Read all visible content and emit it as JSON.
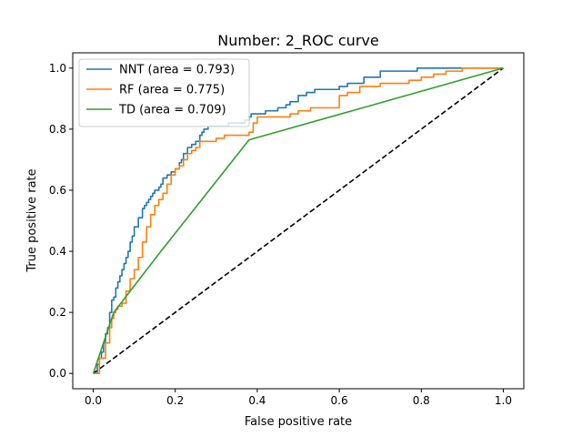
{
  "chart_data": {
    "type": "line",
    "title": "Number: 2_ROC curve",
    "xlabel": "False positive rate",
    "ylabel": "True positive rate",
    "xlim": [
      -0.05,
      1.05
    ],
    "ylim": [
      -0.05,
      1.05
    ],
    "xticks": [
      "0.0",
      "0.2",
      "0.4",
      "0.6",
      "0.8",
      "1.0"
    ],
    "yticks": [
      "0.0",
      "0.2",
      "0.4",
      "0.6",
      "0.8",
      "1.0"
    ],
    "grid": false,
    "legend_position": "upper-left",
    "series": [
      {
        "name": "NNT (area = 0.793)",
        "color": "#1f77b4",
        "step": true,
        "x": [
          0,
          0.01,
          0.015,
          0.02,
          0.025,
          0.03,
          0.035,
          0.04,
          0.045,
          0.05,
          0.055,
          0.06,
          0.065,
          0.07,
          0.075,
          0.08,
          0.085,
          0.09,
          0.095,
          0.1,
          0.11,
          0.12,
          0.125,
          0.13,
          0.135,
          0.14,
          0.145,
          0.15,
          0.16,
          0.165,
          0.17,
          0.18,
          0.19,
          0.2,
          0.21,
          0.215,
          0.22,
          0.23,
          0.24,
          0.25,
          0.26,
          0.265,
          0.27,
          0.28,
          0.29,
          0.3,
          0.31,
          0.32,
          0.33,
          0.36,
          0.37,
          0.38,
          0.385,
          0.39,
          0.42,
          0.45,
          0.47,
          0.48,
          0.5,
          0.51,
          0.52,
          0.54,
          0.55,
          0.6,
          0.62,
          0.66,
          0.7,
          0.75,
          0.79,
          0.84,
          0.9,
          1.0
        ],
        "y": [
          0,
          0.03,
          0.05,
          0.07,
          0.1,
          0.13,
          0.15,
          0.2,
          0.24,
          0.25,
          0.28,
          0.3,
          0.32,
          0.34,
          0.36,
          0.38,
          0.4,
          0.43,
          0.45,
          0.48,
          0.51,
          0.54,
          0.55,
          0.56,
          0.57,
          0.58,
          0.59,
          0.6,
          0.61,
          0.62,
          0.64,
          0.65,
          0.66,
          0.67,
          0.69,
          0.7,
          0.72,
          0.74,
          0.75,
          0.76,
          0.78,
          0.79,
          0.8,
          0.81,
          0.81,
          0.81,
          0.81,
          0.81,
          0.82,
          0.82,
          0.83,
          0.84,
          0.85,
          0.85,
          0.86,
          0.87,
          0.88,
          0.89,
          0.91,
          0.91,
          0.92,
          0.93,
          0.93,
          0.94,
          0.95,
          0.97,
          0.99,
          0.99,
          1.0,
          1.0,
          1.0,
          1.0
        ]
      },
      {
        "name": "RF (area = 0.775)",
        "color": "#ff7f0e",
        "step": true,
        "x": [
          0,
          0.015,
          0.03,
          0.04,
          0.045,
          0.05,
          0.055,
          0.06,
          0.07,
          0.08,
          0.09,
          0.1,
          0.11,
          0.12,
          0.13,
          0.14,
          0.15,
          0.16,
          0.17,
          0.18,
          0.19,
          0.2,
          0.21,
          0.22,
          0.23,
          0.24,
          0.25,
          0.26,
          0.28,
          0.3,
          0.31,
          0.32,
          0.34,
          0.36,
          0.38,
          0.39,
          0.4,
          0.44,
          0.48,
          0.5,
          0.53,
          0.55,
          0.6,
          0.62,
          0.65,
          0.7,
          0.74,
          0.77,
          0.8,
          0.83,
          0.86,
          0.9,
          1.0
        ],
        "y": [
          0,
          0.05,
          0.1,
          0.15,
          0.18,
          0.2,
          0.21,
          0.22,
          0.23,
          0.27,
          0.31,
          0.34,
          0.38,
          0.43,
          0.48,
          0.52,
          0.55,
          0.57,
          0.59,
          0.62,
          0.65,
          0.67,
          0.68,
          0.7,
          0.72,
          0.73,
          0.74,
          0.76,
          0.76,
          0.77,
          0.77,
          0.78,
          0.78,
          0.78,
          0.79,
          0.82,
          0.84,
          0.84,
          0.85,
          0.86,
          0.87,
          0.87,
          0.91,
          0.92,
          0.94,
          0.95,
          0.95,
          0.96,
          0.97,
          0.98,
          0.99,
          1.0,
          1.0
        ]
      },
      {
        "name": "TD (area = 0.709)",
        "color": "#2ca02c",
        "step": false,
        "x": [
          0,
          0.05,
          0.165,
          0.38,
          1.0
        ],
        "y": [
          0,
          0.2,
          0.4,
          0.765,
          1.0
        ]
      },
      {
        "name": "",
        "color": "#000000",
        "dashed": true,
        "step": false,
        "x": [
          0,
          1
        ],
        "y": [
          0,
          1
        ]
      }
    ]
  }
}
